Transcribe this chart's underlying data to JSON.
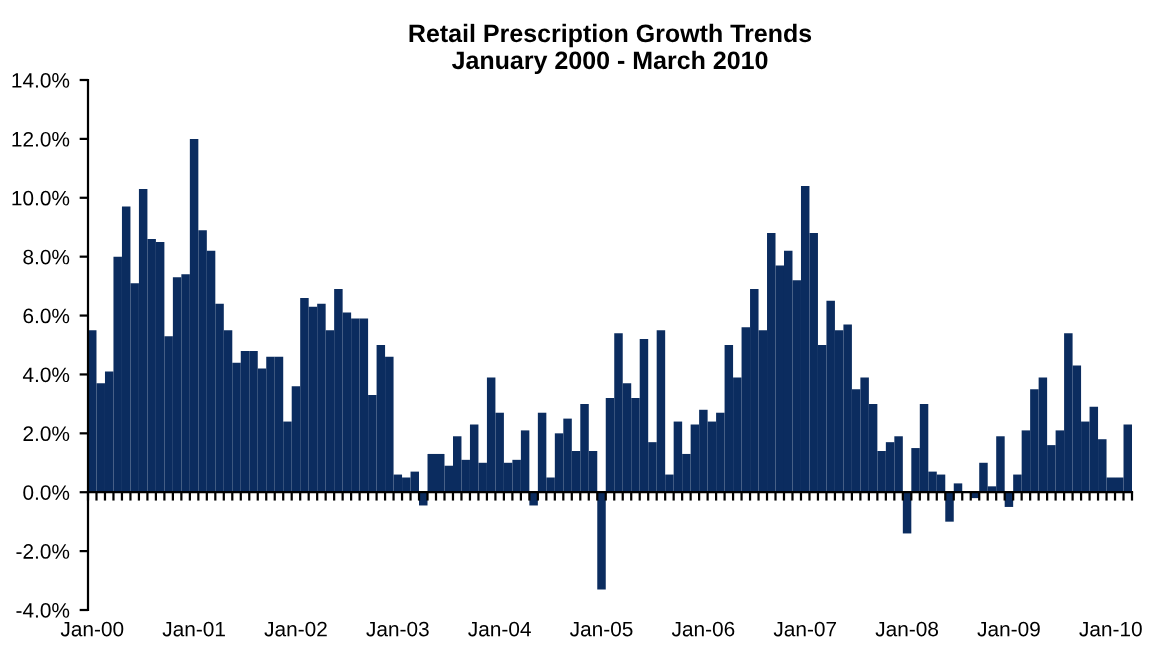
{
  "chart_data": {
    "type": "bar",
    "title": "Retail Prescription Growth Trends",
    "subtitle": "January 2000 - March 2010",
    "categories": [
      "Jan-00",
      null,
      null,
      null,
      null,
      null,
      null,
      null,
      null,
      null,
      null,
      null,
      "Jan-01",
      null,
      null,
      null,
      null,
      null,
      null,
      null,
      null,
      null,
      null,
      null,
      "Jan-02",
      null,
      null,
      null,
      null,
      null,
      null,
      null,
      null,
      null,
      null,
      null,
      "Jan-03",
      null,
      null,
      null,
      null,
      null,
      null,
      null,
      null,
      null,
      null,
      null,
      "Jan-04",
      null,
      null,
      null,
      null,
      null,
      null,
      null,
      null,
      null,
      null,
      null,
      "Jan-05",
      null,
      null,
      null,
      null,
      null,
      null,
      null,
      null,
      null,
      null,
      null,
      "Jan-06",
      null,
      null,
      null,
      null,
      null,
      null,
      null,
      null,
      null,
      null,
      null,
      "Jan-07",
      null,
      null,
      null,
      null,
      null,
      null,
      null,
      null,
      null,
      null,
      null,
      "Jan-08",
      null,
      null,
      null,
      null,
      null,
      null,
      null,
      null,
      null,
      null,
      null,
      "Jan-09",
      null,
      null,
      null,
      null,
      null,
      null,
      null,
      null,
      null,
      null,
      null,
      "Jan-10",
      null,
      null
    ],
    "values": [
      5.5,
      3.7,
      4.1,
      8.0,
      9.7,
      7.1,
      10.3,
      8.6,
      8.5,
      5.3,
      7.3,
      7.4,
      12.0,
      8.9,
      8.2,
      6.4,
      5.5,
      4.4,
      4.8,
      4.8,
      4.2,
      4.6,
      4.6,
      2.4,
      3.6,
      6.6,
      6.3,
      6.4,
      5.5,
      6.9,
      6.1,
      5.9,
      5.9,
      3.3,
      5.0,
      4.6,
      0.6,
      0.5,
      0.7,
      -0.45,
      1.3,
      1.3,
      0.9,
      1.9,
      1.1,
      2.3,
      1.0,
      3.9,
      2.7,
      1.0,
      1.1,
      2.1,
      -0.45,
      2.7,
      0.5,
      2.0,
      2.5,
      1.4,
      3.0,
      1.4,
      -3.3,
      3.2,
      5.4,
      3.7,
      3.2,
      5.2,
      1.7,
      5.5,
      0.6,
      2.4,
      1.3,
      2.3,
      2.8,
      2.4,
      2.7,
      5.0,
      3.9,
      5.6,
      6.9,
      5.5,
      8.8,
      7.7,
      8.2,
      7.2,
      10.4,
      8.8,
      5.0,
      6.5,
      5.5,
      5.7,
      3.5,
      3.9,
      3.0,
      1.4,
      1.7,
      1.9,
      -1.4,
      1.5,
      3.0,
      0.7,
      0.6,
      -1.0,
      0.3,
      0.0,
      -0.2,
      1.0,
      0.2,
      1.9,
      -0.5,
      0.6,
      2.1,
      3.5,
      3.9,
      1.6,
      2.1,
      5.4,
      4.3,
      2.4,
      2.9,
      1.8,
      0.5,
      0.5,
      2.3
    ],
    "color": "#0b2c5f",
    "ylim": [
      -4,
      14
    ],
    "yticks": [
      {
        "value": -4,
        "label": "-4.0%"
      },
      {
        "value": -2,
        "label": "-2.0%"
      },
      {
        "value": 0,
        "label": "0.0%"
      },
      {
        "value": 2,
        "label": "2.0%"
      },
      {
        "value": 4,
        "label": "4.0%"
      },
      {
        "value": 6,
        "label": "6.0%"
      },
      {
        "value": 8,
        "label": "8.0%"
      },
      {
        "value": 10,
        "label": "10.0%"
      },
      {
        "value": 12,
        "label": "12.0%"
      },
      {
        "value": 14,
        "label": "14.0%"
      }
    ],
    "legend": false
  }
}
